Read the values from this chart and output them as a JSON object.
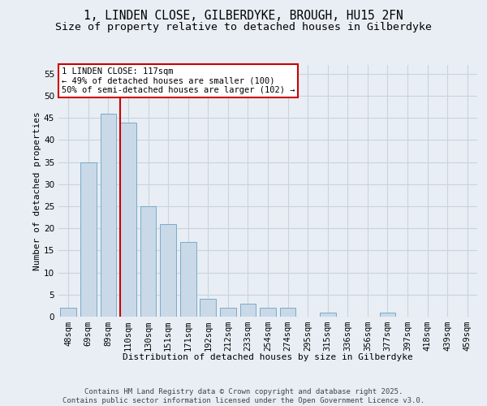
{
  "title_line1": "1, LINDEN CLOSE, GILBERDYKE, BROUGH, HU15 2FN",
  "title_line2": "Size of property relative to detached houses in Gilberdyke",
  "xlabel": "Distribution of detached houses by size in Gilberdyke",
  "ylabel": "Number of detached properties",
  "categories": [
    "48sqm",
    "69sqm",
    "89sqm",
    "110sqm",
    "130sqm",
    "151sqm",
    "171sqm",
    "192sqm",
    "212sqm",
    "233sqm",
    "254sqm",
    "274sqm",
    "295sqm",
    "315sqm",
    "336sqm",
    "356sqm",
    "377sqm",
    "397sqm",
    "418sqm",
    "439sqm",
    "459sqm"
  ],
  "values": [
    2,
    35,
    46,
    44,
    25,
    21,
    17,
    4,
    2,
    3,
    2,
    2,
    0,
    1,
    0,
    0,
    1,
    0,
    0,
    0,
    0
  ],
  "bar_color": "#c9d9e8",
  "bar_edge_color": "#7aabc8",
  "grid_color": "#c8d4e0",
  "background_color": "#e8eef4",
  "vline_x_index": 3,
  "vline_color": "#cc0000",
  "annotation_text": "1 LINDEN CLOSE: 117sqm\n← 49% of detached houses are smaller (100)\n50% of semi-detached houses are larger (102) →",
  "annotation_box_color": "#ffffff",
  "annotation_box_edge": "#cc0000",
  "ylim": [
    0,
    57
  ],
  "yticks": [
    0,
    5,
    10,
    15,
    20,
    25,
    30,
    35,
    40,
    45,
    50,
    55
  ],
  "footer": "Contains HM Land Registry data © Crown copyright and database right 2025.\nContains public sector information licensed under the Open Government Licence v3.0.",
  "title_fontsize": 10.5,
  "subtitle_fontsize": 9.5,
  "axis_label_fontsize": 8,
  "tick_fontsize": 7.5,
  "annotation_fontsize": 7.5,
  "footer_fontsize": 6.5
}
